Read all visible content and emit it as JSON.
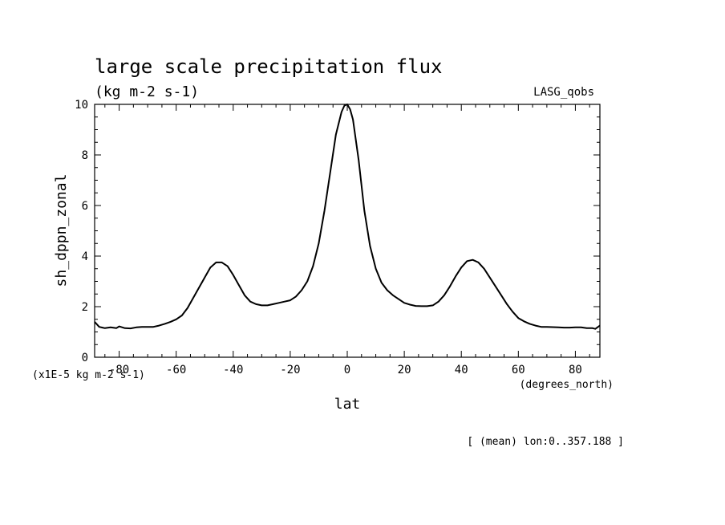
{
  "chart_data": {
    "type": "line",
    "title": "large scale precipitation flux",
    "units": "(kg m-2 s-1)",
    "dataset": "LASG_qobs",
    "xlabel": "lat",
    "xunits": "(degrees_north)",
    "ylabel": "sh_dppn_zonal",
    "yscale_note": "(x1E-5 kg m-2 s-1)",
    "footnote": "[ (mean) lon:0..357.188 ]",
    "xlim": [
      -88.6,
      88.6
    ],
    "ylim": [
      0,
      10
    ],
    "xticks": [
      -80,
      -60,
      -40,
      -20,
      0,
      20,
      40,
      60,
      80
    ],
    "xtick_labels": [
      "-80",
      "-60",
      "-40",
      "-20",
      "0",
      "20",
      "40",
      "60",
      "80"
    ],
    "yticks": [
      0,
      2,
      4,
      6,
      8,
      10
    ],
    "ytick_labels": [
      "0",
      "2",
      "4",
      "6",
      "8",
      "10"
    ],
    "series": [
      {
        "name": "sh_dppn_zonal",
        "x": [
          -88.6,
          -87,
          -85,
          -83,
          -81,
          -80,
          -78,
          -76,
          -74,
          -72,
          -70,
          -68,
          -66,
          -64,
          -62,
          -60,
          -58,
          -56,
          -54,
          -52,
          -50,
          -48,
          -46,
          -44,
          -42,
          -40,
          -38,
          -36,
          -34,
          -32,
          -30,
          -28,
          -26,
          -24,
          -22,
          -20,
          -18,
          -16,
          -14,
          -12,
          -10,
          -8,
          -6,
          -4,
          -2,
          -1,
          0,
          1,
          2,
          4,
          6,
          8,
          10,
          12,
          14,
          16,
          18,
          20,
          22,
          24,
          26,
          28,
          30,
          32,
          34,
          36,
          38,
          40,
          42,
          44,
          46,
          48,
          50,
          52,
          54,
          56,
          58,
          60,
          62,
          64,
          66,
          68,
          70,
          72,
          74,
          76,
          78,
          80,
          82,
          84,
          86,
          87,
          88.6
        ],
        "values": [
          1.4,
          1.2,
          1.15,
          1.18,
          1.15,
          1.22,
          1.15,
          1.14,
          1.18,
          1.2,
          1.2,
          1.2,
          1.25,
          1.32,
          1.4,
          1.5,
          1.65,
          1.95,
          2.35,
          2.75,
          3.15,
          3.55,
          3.75,
          3.75,
          3.6,
          3.25,
          2.85,
          2.45,
          2.2,
          2.1,
          2.05,
          2.05,
          2.1,
          2.15,
          2.2,
          2.25,
          2.4,
          2.65,
          3.0,
          3.6,
          4.5,
          5.8,
          7.3,
          8.8,
          9.7,
          9.95,
          10.0,
          9.8,
          9.4,
          7.8,
          5.8,
          4.4,
          3.5,
          2.95,
          2.65,
          2.45,
          2.3,
          2.15,
          2.08,
          2.03,
          2.02,
          2.02,
          2.05,
          2.2,
          2.45,
          2.8,
          3.2,
          3.55,
          3.8,
          3.85,
          3.75,
          3.5,
          3.15,
          2.8,
          2.45,
          2.1,
          1.8,
          1.55,
          1.42,
          1.32,
          1.25,
          1.2,
          1.2,
          1.19,
          1.18,
          1.17,
          1.17,
          1.18,
          1.18,
          1.15,
          1.15,
          1.12,
          1.25
        ]
      }
    ]
  }
}
